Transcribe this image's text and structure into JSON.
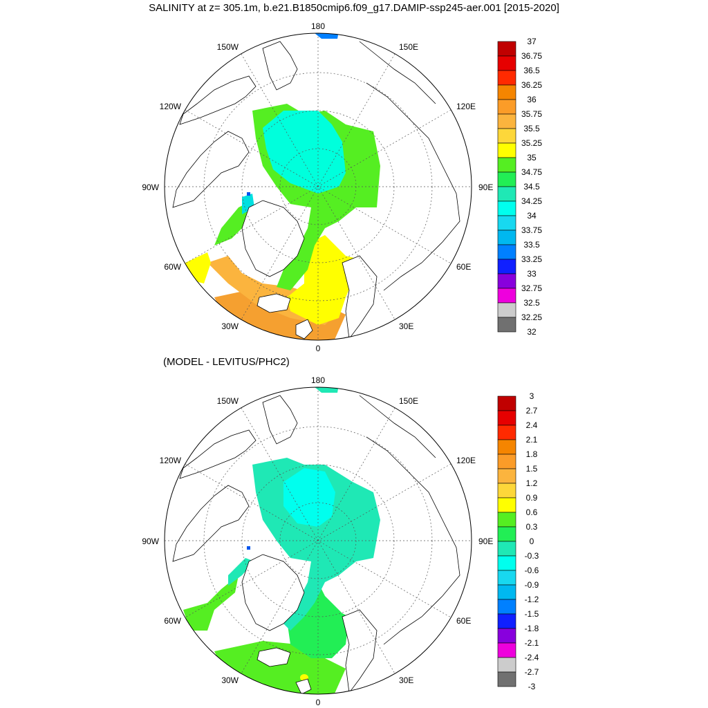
{
  "title": "SALINITY at z= 305.1m, b.e21.B1850cmip6.f09_g17.DAMIP-ssp245-aer.001 [2015-2020]",
  "subtitle": "(MODEL - LEVITUS/PHC2)",
  "longitude_labels": {
    "top": "180",
    "bottom": "0",
    "left": "90W",
    "right": "90E",
    "upper_left": "150W",
    "upper_right": "150E",
    "mid_upper_left": "120W",
    "mid_upper_right": "120E",
    "mid_lower_left": "60W",
    "mid_lower_right": "60E",
    "lower_left": "30W",
    "lower_right": "30E"
  },
  "panel1": {
    "colorbar_labels": [
      "37",
      "36.75",
      "36.5",
      "36.25",
      "36",
      "35.75",
      "35.5",
      "35.25",
      "35",
      "34.75",
      "34.5",
      "34.25",
      "34",
      "33.75",
      "33.5",
      "33.25",
      "33",
      "32.75",
      "32.5",
      "32.25",
      "32"
    ],
    "colorbar_colors": [
      "#c00000",
      "#e60000",
      "#ff2a00",
      "#f58500",
      "#fb9c28",
      "#fbb43e",
      "#fdd73a",
      "#ffff00",
      "#55ee22",
      "#22ee55",
      "#1fe8b5",
      "#00ffee",
      "#18d8f0",
      "#00b8f0",
      "#0080ff",
      "#1020ff",
      "#8800dd",
      "#ee00dd",
      "#cccccc",
      "#707070"
    ],
    "regions": {
      "central_arctic": "#00ffdc",
      "shelf_rim": "#55ee22",
      "atlantic_inflow": "#ffff00",
      "nordic_seas": "#fbb43e",
      "north_atlantic": "#f5a030",
      "labrador": "#00e0e0",
      "fresh_spot": "#0055ee",
      "beaufort_edge": "#0080ff"
    }
  },
  "panel2": {
    "colorbar_labels": [
      "3",
      "2.7",
      "2.4",
      "2.1",
      "1.8",
      "1.5",
      "1.2",
      "0.9",
      "0.6",
      "0.3",
      "0",
      "-0.3",
      "-0.6",
      "-0.9",
      "-1.2",
      "-1.5",
      "-1.8",
      "-2.1",
      "-2.4",
      "-2.7",
      "-3"
    ],
    "colorbar_colors": [
      "#c00000",
      "#e60000",
      "#ff2a00",
      "#f58500",
      "#fb9c28",
      "#fbb43e",
      "#fdd73a",
      "#ffff00",
      "#55ee22",
      "#22ee55",
      "#1fe8b5",
      "#00ffee",
      "#18d8f0",
      "#00b8f0",
      "#0080ff",
      "#1020ff",
      "#8800dd",
      "#ee00dd",
      "#cccccc",
      "#707070"
    ],
    "regions": {
      "central_arctic": "#1fe8b5",
      "eurasian_basin_core": "#00ffee",
      "greenland_sea": "#22ee55",
      "north_atlantic": "#55ee22",
      "labrador_west": "#55ee22",
      "positive_spot": "#ffff00",
      "fresh_spot": "#0055ee"
    }
  }
}
